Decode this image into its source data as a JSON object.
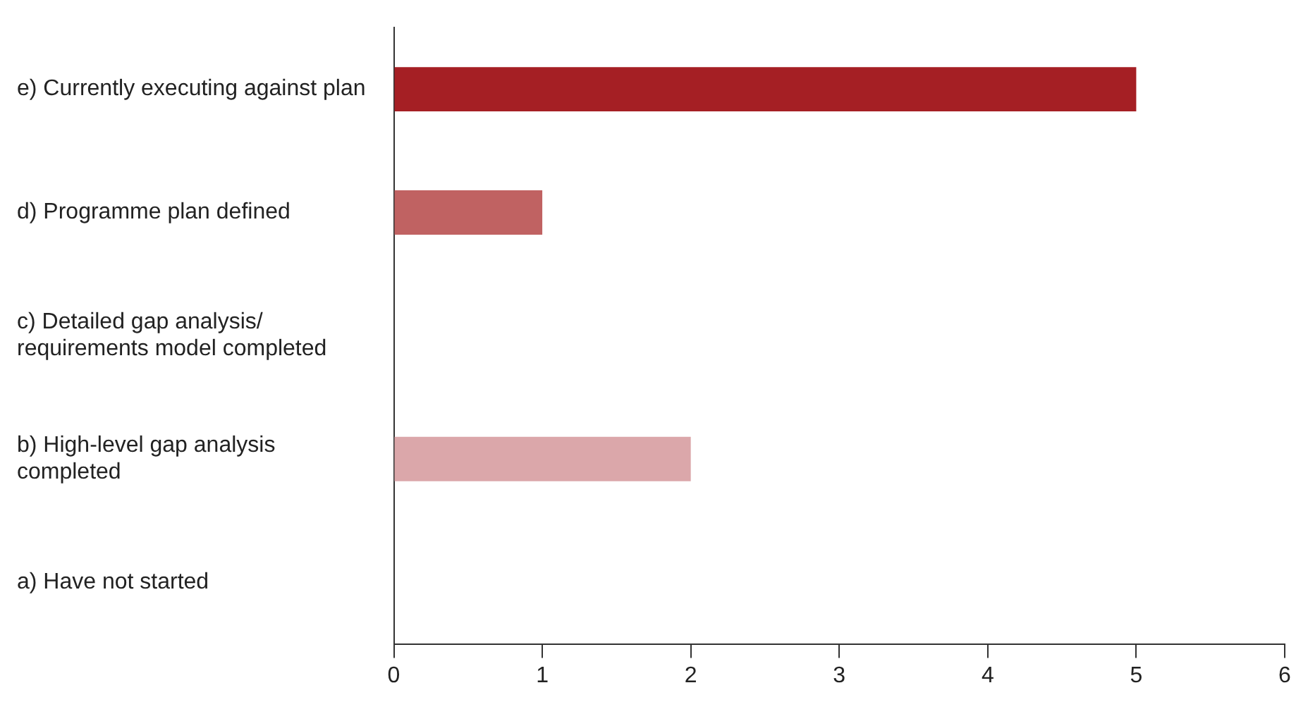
{
  "chart_data": {
    "type": "bar",
    "orientation": "horizontal",
    "categories": [
      "e) Currently executing against plan",
      "d) Programme plan defined",
      "c) Detailed gap analysis/\nrequirements model completed",
      "b) High-level gap analysis\ncompleted",
      "a) Have not started"
    ],
    "values": [
      5,
      1,
      0,
      2,
      0
    ],
    "colors": [
      "#a51f24",
      "#c06262",
      "#c06262",
      "#dba7aa",
      "#dba7aa"
    ],
    "xlim": [
      0,
      6
    ],
    "xticks": [
      0,
      1,
      2,
      3,
      4,
      5,
      6
    ],
    "grid": false,
    "legend": false
  }
}
